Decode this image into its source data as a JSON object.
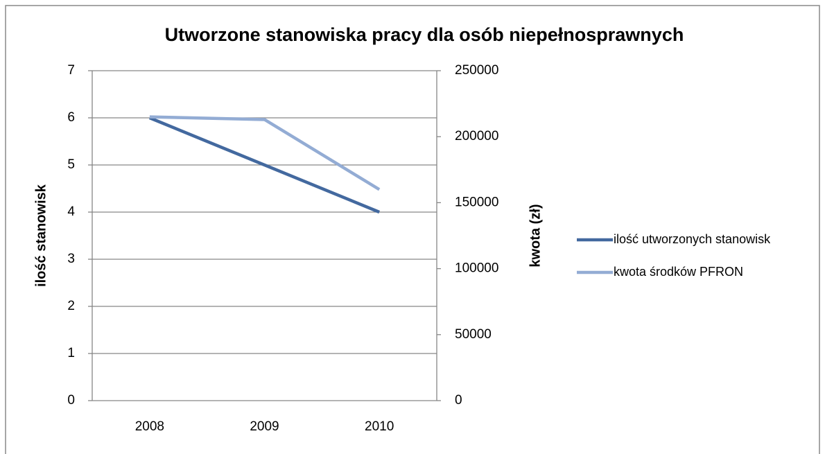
{
  "chart_data": {
    "type": "line",
    "title": "Utworzone stanowiska pracy dla osób niepełnosprawnych",
    "categories": [
      "2008",
      "2009",
      "2010"
    ],
    "series": [
      {
        "name": "ilość utworzonych stanowisk",
        "color": "#43699f",
        "values": [
          6,
          5,
          4
        ]
      },
      {
        "name": "kwota środków PFRON",
        "color": "#93acd4",
        "values": [
          215000,
          213000,
          160000
        ],
        "axis": "y2"
      }
    ],
    "ylabel": "ilość stanowisk",
    "y2label": "kwota (zł)",
    "ylim": [
      0,
      7
    ],
    "yticks": [
      0,
      1,
      2,
      3,
      4,
      5,
      6,
      7
    ],
    "y2lim": [
      0,
      250000
    ],
    "y2ticks": [
      0,
      50000,
      100000,
      150000,
      200000,
      250000
    ],
    "grid": true,
    "legend": "right"
  }
}
